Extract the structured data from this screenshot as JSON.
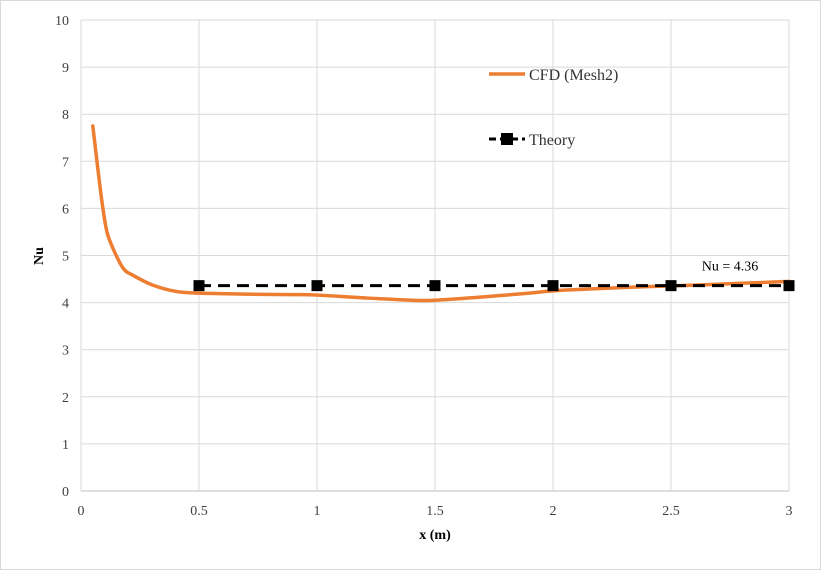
{
  "chart_data": {
    "type": "line",
    "xlabel": "x (m)",
    "ylabel": "Nu",
    "xlim": [
      0,
      3
    ],
    "ylim": [
      0,
      10
    ],
    "x_ticks": [
      "0",
      "0.5",
      "1",
      "1.5",
      "2",
      "2.5",
      "3"
    ],
    "y_ticks": [
      "0",
      "1",
      "2",
      "3",
      "4",
      "5",
      "6",
      "7",
      "8",
      "9",
      "10"
    ],
    "grid": true,
    "legend_position": "top-right",
    "series": [
      {
        "name": "CFD (Mesh2)",
        "style": "solid",
        "color": "#ED7D31",
        "x": [
          0.05,
          0.07,
          0.09,
          0.11,
          0.14,
          0.18,
          0.22,
          0.3,
          0.4,
          0.5,
          0.7,
          0.9,
          1.0,
          1.2,
          1.4,
          1.5,
          1.7,
          1.9,
          2.0,
          2.2,
          2.4,
          2.6,
          2.8,
          3.0
        ],
        "y": [
          7.75,
          6.9,
          6.1,
          5.5,
          5.1,
          4.72,
          4.58,
          4.38,
          4.24,
          4.2,
          4.18,
          4.17,
          4.16,
          4.1,
          4.05,
          4.05,
          4.12,
          4.2,
          4.25,
          4.3,
          4.34,
          4.37,
          4.41,
          4.45
        ]
      },
      {
        "name": "Theory",
        "style": "dashed-square-markers",
        "color": "#000000",
        "x": [
          0.5,
          1.0,
          1.5,
          2.0,
          2.5,
          3.0
        ],
        "y": [
          4.36,
          4.36,
          4.36,
          4.36,
          4.36,
          4.36
        ]
      }
    ],
    "annotations": [
      {
        "text": "Nu = 4.36",
        "x": 2.75,
        "y": 4.55
      }
    ]
  }
}
